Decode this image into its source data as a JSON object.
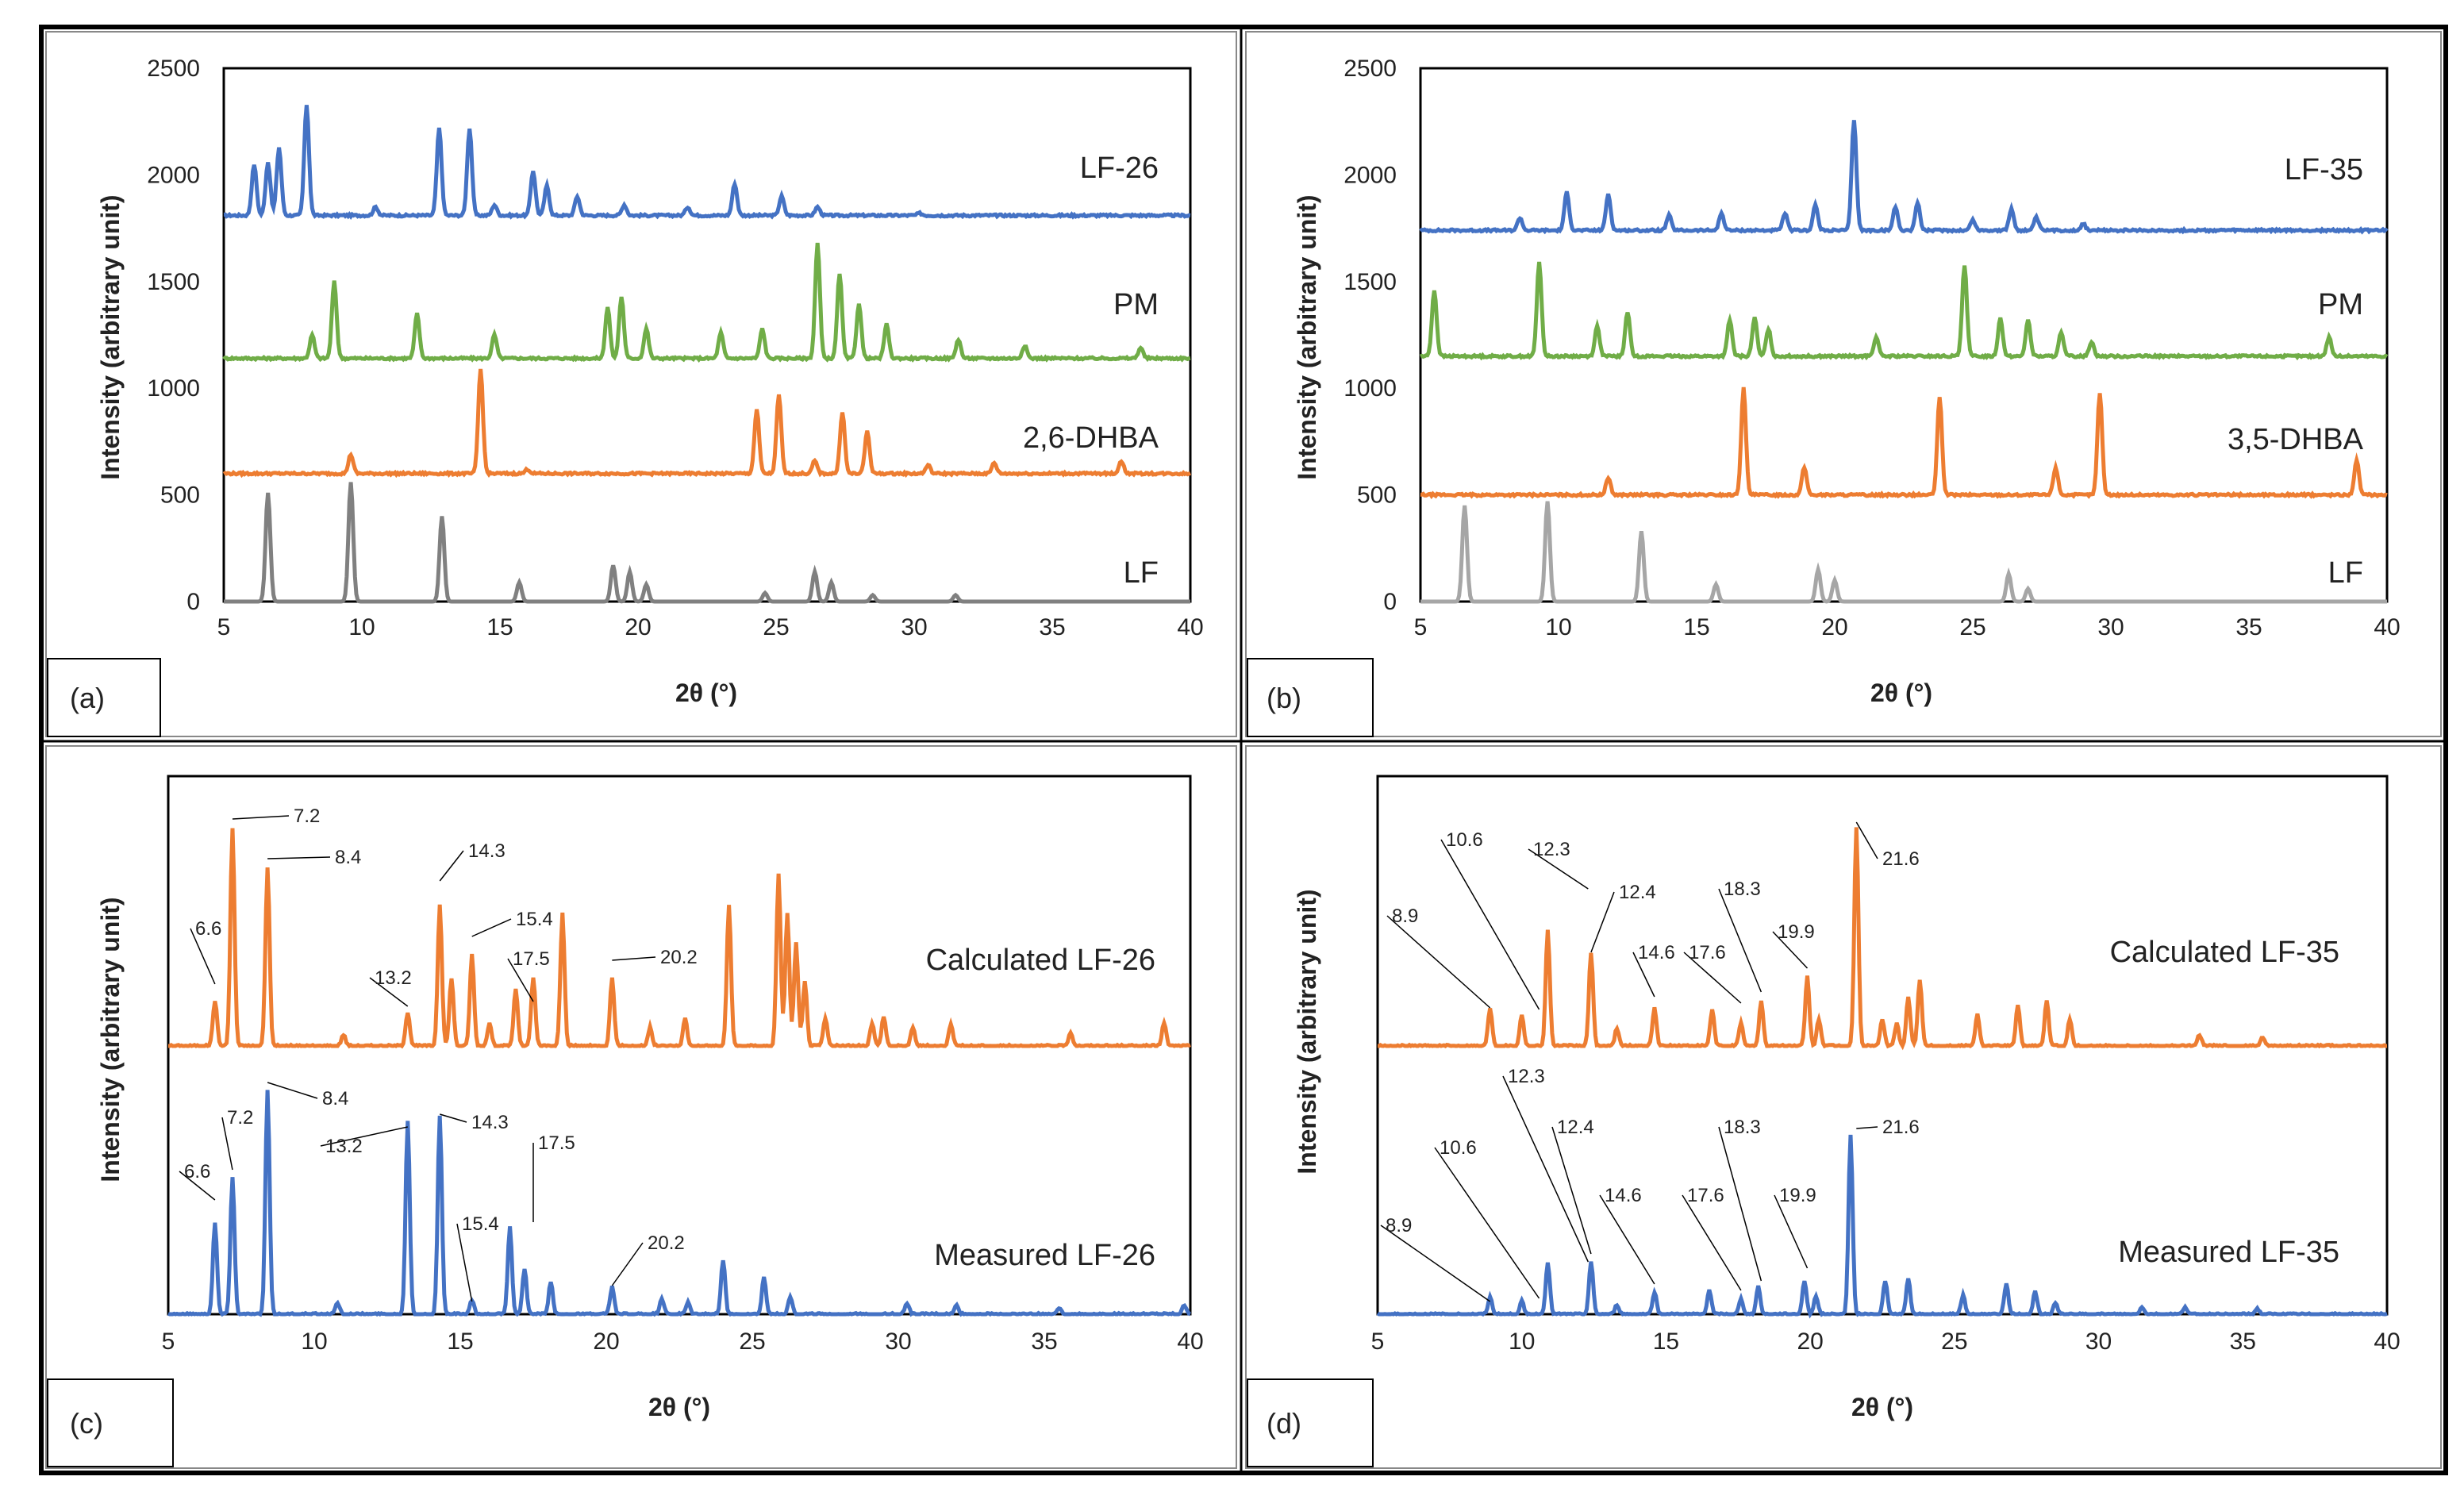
{
  "figure": {
    "description_labels": [
      "(a)",
      "(b)",
      "(c)",
      "(d)"
    ]
  },
  "chart_data": [
    {
      "panel": "(a)",
      "type": "line",
      "xlabel": "2θ (°)",
      "ylabel": "Intensity (arbitrary unit)",
      "xlim": [
        5,
        40
      ],
      "ylim": [
        0,
        2500
      ],
      "xticks": [
        "5",
        "10",
        "15",
        "20",
        "25",
        "30",
        "35",
        "40"
      ],
      "yticks": [
        "0",
        "500",
        "1000",
        "1500",
        "2000",
        "2500"
      ],
      "series": [
        {
          "name": "LF-26",
          "color": "#4472C4",
          "baseline": 1810,
          "peaks": [
            [
              6.1,
              2050
            ],
            [
              6.6,
              2060
            ],
            [
              7.0,
              2130
            ],
            [
              8.0,
              2330
            ],
            [
              10.5,
              1850
            ],
            [
              12.8,
              2220
            ],
            [
              13.9,
              2220
            ],
            [
              14.8,
              1860
            ],
            [
              16.2,
              2020
            ],
            [
              16.7,
              1950
            ],
            [
              17.8,
              1900
            ],
            [
              19.5,
              1860
            ],
            [
              21.8,
              1850
            ],
            [
              23.5,
              1960
            ],
            [
              25.2,
              1900
            ],
            [
              26.5,
              1850
            ],
            [
              30.2,
              1820
            ]
          ]
        },
        {
          "name": "PM",
          "color": "#70AD47",
          "baseline": 1140,
          "peaks": [
            [
              8.2,
              1250
            ],
            [
              9.0,
              1500
            ],
            [
              12.0,
              1350
            ],
            [
              14.8,
              1250
            ],
            [
              18.9,
              1380
            ],
            [
              19.4,
              1430
            ],
            [
              20.3,
              1280
            ],
            [
              23.0,
              1260
            ],
            [
              24.5,
              1280
            ],
            [
              26.5,
              1680
            ],
            [
              27.3,
              1540
            ],
            [
              28.0,
              1400
            ],
            [
              29.0,
              1300
            ],
            [
              31.6,
              1230
            ],
            [
              34.0,
              1200
            ],
            [
              38.2,
              1190
            ]
          ]
        },
        {
          "name": "2,6-DHBA",
          "color": "#ED7D31",
          "baseline": 600,
          "peaks": [
            [
              9.6,
              690
            ],
            [
              14.3,
              1090
            ],
            [
              16.0,
              620
            ],
            [
              24.3,
              900
            ],
            [
              25.1,
              970
            ],
            [
              26.4,
              660
            ],
            [
              27.4,
              890
            ],
            [
              28.3,
              800
            ],
            [
              30.5,
              640
            ],
            [
              32.9,
              650
            ],
            [
              37.5,
              660
            ]
          ]
        },
        {
          "name": "LF",
          "color": "#808080",
          "baseline": 0,
          "peaks": [
            [
              6.6,
              510
            ],
            [
              9.6,
              560
            ],
            [
              12.9,
              400
            ],
            [
              15.7,
              90
            ],
            [
              19.1,
              170
            ],
            [
              19.7,
              140
            ],
            [
              20.3,
              80
            ],
            [
              24.6,
              40
            ],
            [
              26.4,
              140
            ],
            [
              27.0,
              90
            ],
            [
              28.5,
              30
            ],
            [
              31.5,
              30
            ]
          ]
        }
      ]
    },
    {
      "panel": "(b)",
      "type": "line",
      "xlabel": "2θ (°)",
      "ylabel": "Intensity (arbitrary unit)",
      "xlim": [
        5,
        40
      ],
      "ylim": [
        0,
        2500
      ],
      "xticks": [
        "5",
        "10",
        "15",
        "20",
        "25",
        "30",
        "35",
        "40"
      ],
      "yticks": [
        "0",
        "500",
        "1000",
        "1500",
        "2000",
        "2500"
      ],
      "series": [
        {
          "name": "LF-35",
          "color": "#4472C4",
          "baseline": 1740,
          "peaks": [
            [
              8.6,
              1800
            ],
            [
              10.3,
              1920
            ],
            [
              11.8,
              1910
            ],
            [
              14.0,
              1810
            ],
            [
              15.9,
              1820
            ],
            [
              18.2,
              1820
            ],
            [
              19.3,
              1860
            ],
            [
              20.7,
              2260
            ],
            [
              22.2,
              1850
            ],
            [
              23.0,
              1870
            ],
            [
              25.0,
              1790
            ],
            [
              26.4,
              1840
            ],
            [
              27.3,
              1800
            ],
            [
              29.0,
              1770
            ]
          ]
        },
        {
          "name": "PM",
          "color": "#70AD47",
          "baseline": 1150,
          "peaks": [
            [
              5.5,
              1460
            ],
            [
              9.3,
              1590
            ],
            [
              11.4,
              1290
            ],
            [
              12.5,
              1360
            ],
            [
              16.2,
              1320
            ],
            [
              17.1,
              1330
            ],
            [
              17.6,
              1280
            ],
            [
              21.5,
              1240
            ],
            [
              24.7,
              1580
            ],
            [
              26.0,
              1330
            ],
            [
              27.0,
              1320
            ],
            [
              28.2,
              1260
            ],
            [
              29.3,
              1220
            ],
            [
              37.9,
              1240
            ]
          ]
        },
        {
          "name": "3,5-DHBA",
          "color": "#ED7D31",
          "baseline": 500,
          "peaks": [
            [
              11.8,
              580
            ],
            [
              16.7,
              1000
            ],
            [
              18.9,
              630
            ],
            [
              23.8,
              960
            ],
            [
              28.0,
              630
            ],
            [
              29.6,
              980
            ],
            [
              38.9,
              660
            ]
          ]
        },
        {
          "name": "LF",
          "color": "#A6A6A6",
          "baseline": 0,
          "peaks": [
            [
              6.6,
              450
            ],
            [
              9.6,
              470
            ],
            [
              13.0,
              330
            ],
            [
              15.7,
              80
            ],
            [
              19.4,
              150
            ],
            [
              20.0,
              100
            ],
            [
              26.3,
              130
            ],
            [
              27.0,
              60
            ]
          ]
        }
      ]
    },
    {
      "panel": "(c)",
      "type": "line",
      "xlabel": "2θ (°)",
      "ylabel": "Intensity (arbitrary unit)",
      "xlim": [
        5,
        40
      ],
      "xticks": [
        "5",
        "10",
        "15",
        "20",
        "25",
        "30",
        "35",
        "40"
      ],
      "series": [
        {
          "name": "Calculated LF-26",
          "color": "#ED7D31",
          "peaks": [
            [
              6.6,
              0.2
            ],
            [
              7.2,
              0.95
            ],
            [
              8.4,
              0.78
            ],
            [
              11.0,
              0.05
            ],
            [
              13.2,
              0.15
            ],
            [
              14.3,
              0.62
            ],
            [
              14.7,
              0.3
            ],
            [
              15.4,
              0.4
            ],
            [
              16.0,
              0.1
            ],
            [
              16.9,
              0.25
            ],
            [
              17.5,
              0.3
            ],
            [
              18.5,
              0.58
            ],
            [
              20.2,
              0.3
            ],
            [
              21.5,
              0.08
            ],
            [
              22.7,
              0.12
            ],
            [
              24.2,
              0.62
            ],
            [
              25.9,
              0.75
            ],
            [
              26.2,
              0.58
            ],
            [
              26.5,
              0.45
            ],
            [
              26.8,
              0.28
            ],
            [
              27.5,
              0.12
            ],
            [
              29.1,
              0.1
            ],
            [
              29.5,
              0.13
            ],
            [
              30.5,
              0.08
            ],
            [
              31.8,
              0.1
            ],
            [
              35.9,
              0.06
            ],
            [
              39.1,
              0.1
            ]
          ]
        },
        {
          "name": "Measured LF-26",
          "color": "#4472C4",
          "peaks": [
            [
              6.6,
              0.4
            ],
            [
              7.2,
              0.6
            ],
            [
              8.4,
              0.98
            ],
            [
              10.8,
              0.05
            ],
            [
              13.2,
              0.85
            ],
            [
              14.3,
              0.87
            ],
            [
              15.4,
              0.06
            ],
            [
              16.7,
              0.38
            ],
            [
              17.2,
              0.2
            ],
            [
              18.1,
              0.14
            ],
            [
              20.2,
              0.12
            ],
            [
              21.9,
              0.07
            ],
            [
              22.8,
              0.05
            ],
            [
              24.0,
              0.24
            ],
            [
              25.4,
              0.16
            ],
            [
              26.3,
              0.08
            ],
            [
              30.3,
              0.05
            ],
            [
              32.0,
              0.04
            ],
            [
              35.5,
              0.03
            ],
            [
              39.8,
              0.04
            ]
          ]
        }
      ],
      "annotations": {
        "calc": [
          "6.6",
          "7.2",
          "8.4",
          "13.2",
          "14.3",
          "15.4",
          "17.5",
          "20.2"
        ],
        "meas": [
          "6.6",
          "7.2",
          "8.4",
          "13.2",
          "14.3",
          "15.4",
          "17.5",
          "20.2"
        ]
      }
    },
    {
      "panel": "(d)",
      "type": "line",
      "xlabel": "2θ (°)",
      "ylabel": "Intensity (arbitrary unit)",
      "xlim": [
        5,
        40
      ],
      "xticks": [
        "5",
        "10",
        "15",
        "20",
        "25",
        "30",
        "35",
        "40"
      ],
      "series": [
        {
          "name": "Calculated LF-35",
          "color": "#ED7D31",
          "peaks": [
            [
              8.9,
              0.17
            ],
            [
              10.0,
              0.14
            ],
            [
              10.9,
              0.52
            ],
            [
              12.4,
              0.42
            ],
            [
              13.3,
              0.08
            ],
            [
              14.6,
              0.17
            ],
            [
              16.6,
              0.16
            ],
            [
              17.6,
              0.1
            ],
            [
              18.3,
              0.2
            ],
            [
              19.9,
              0.31
            ],
            [
              20.3,
              0.12
            ],
            [
              21.6,
              0.98
            ],
            [
              22.5,
              0.12
            ],
            [
              23.0,
              0.1
            ],
            [
              23.4,
              0.22
            ],
            [
              23.8,
              0.3
            ],
            [
              25.8,
              0.14
            ],
            [
              27.2,
              0.18
            ],
            [
              28.2,
              0.2
            ],
            [
              29.0,
              0.12
            ],
            [
              33.5,
              0.05
            ],
            [
              35.7,
              0.04
            ]
          ]
        },
        {
          "name": "Measured LF-35",
          "color": "#4472C4",
          "peaks": [
            [
              8.9,
              0.09
            ],
            [
              10.0,
              0.07
            ],
            [
              10.9,
              0.28
            ],
            [
              12.4,
              0.28
            ],
            [
              13.3,
              0.05
            ],
            [
              14.6,
              0.12
            ],
            [
              16.5,
              0.13
            ],
            [
              17.6,
              0.08
            ],
            [
              18.2,
              0.15
            ],
            [
              19.8,
              0.18
            ],
            [
              20.2,
              0.1
            ],
            [
              21.4,
              0.96
            ],
            [
              22.6,
              0.18
            ],
            [
              23.4,
              0.19
            ],
            [
              25.3,
              0.1
            ],
            [
              26.8,
              0.16
            ],
            [
              27.8,
              0.12
            ],
            [
              28.5,
              0.06
            ],
            [
              31.5,
              0.04
            ],
            [
              33.0,
              0.04
            ],
            [
              35.5,
              0.03
            ]
          ]
        }
      ],
      "annotations": {
        "calc": [
          "8.9",
          "10.6",
          "12.3",
          "12.4",
          "14.6",
          "17.6",
          "18.3",
          "19.9",
          "21.6"
        ],
        "meas": [
          "8.9",
          "10.6",
          "12.3",
          "12.4",
          "14.6",
          "17.6",
          "18.3",
          "19.9",
          "21.6"
        ]
      }
    }
  ]
}
